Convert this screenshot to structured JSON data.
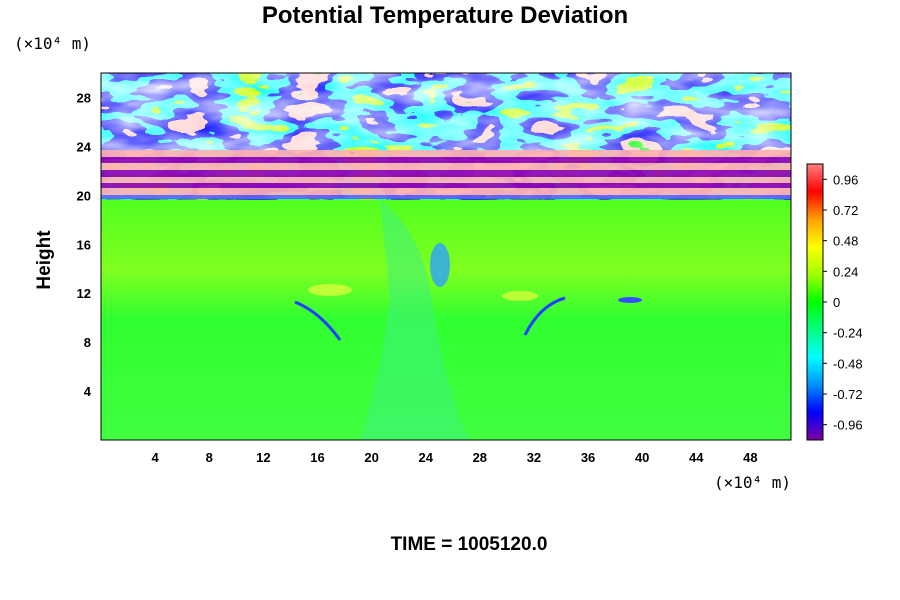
{
  "chart_data": {
    "type": "heatmap",
    "title": "Potential Temperature Deviation",
    "ylabel": "Height",
    "x_unit": "(×10⁴ m)",
    "y_unit": "(×10⁴ m)",
    "x_ticks": [
      "4",
      "8",
      "12",
      "16",
      "20",
      "24",
      "28",
      "32",
      "36",
      "40",
      "44",
      "48"
    ],
    "y_ticks": [
      "4",
      "8",
      "12",
      "16",
      "20",
      "24",
      "28"
    ],
    "xlim": [
      0,
      51
    ],
    "ylim": [
      0,
      30
    ],
    "colorbar": {
      "ticks": [
        "0.96",
        "0.72",
        "0.48",
        "0.24",
        "0",
        "-0.24",
        "-0.48",
        "-0.72",
        "-0.96"
      ],
      "range": [
        -1.08,
        1.08
      ],
      "colors": [
        "#8000a0",
        "#0000ff",
        "#0090ff",
        "#00ffff",
        "#00ff80",
        "#00ff00",
        "#a0ff00",
        "#ffff00",
        "#ffa000",
        "#ff0000",
        "#ff8080"
      ]
    },
    "time_label": "TIME = 1005120.0"
  }
}
